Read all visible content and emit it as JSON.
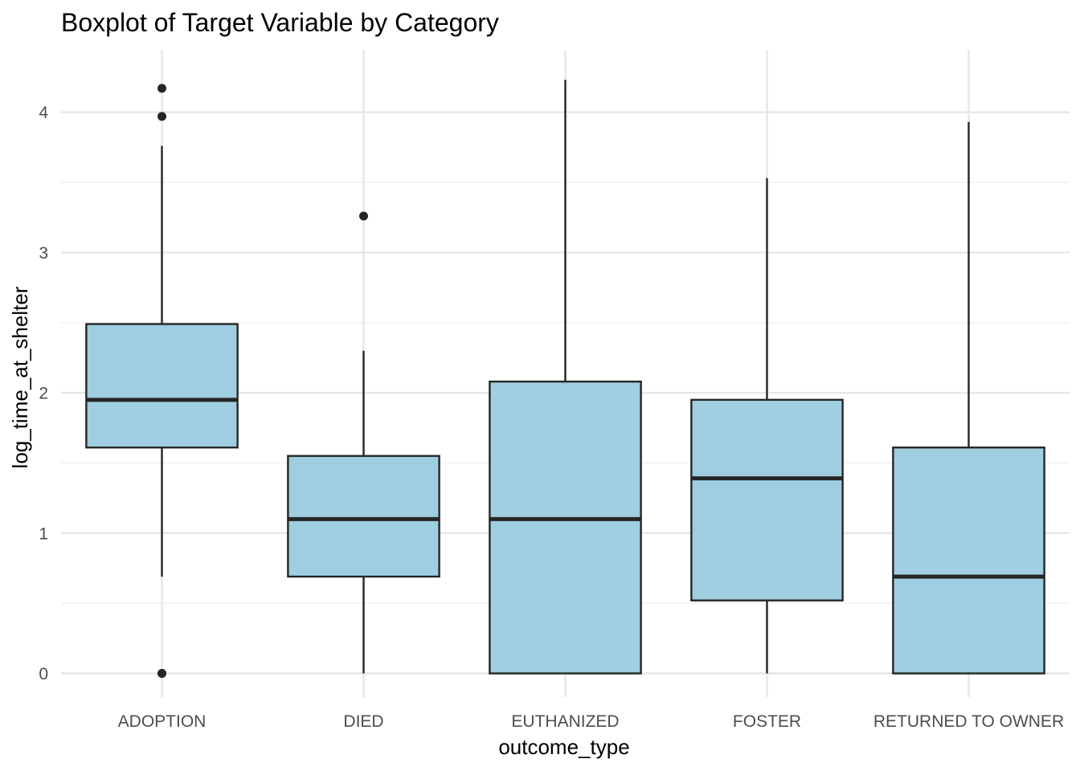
{
  "chart_data": {
    "type": "boxplot",
    "title": "Boxplot of Target Variable by Category",
    "xlabel": "outcome_type",
    "ylabel": "log_time_at_shelter",
    "categories": [
      "ADOPTION",
      "DIED",
      "EUTHANIZED",
      "FOSTER",
      "RETURNED TO OWNER"
    ],
    "ylim": [
      -0.17,
      4.45
    ],
    "y_ticks": [
      0,
      1,
      2,
      3,
      4
    ],
    "y_minor_ticks": [
      0.5,
      1.5,
      2.5,
      3.5
    ],
    "grid": true,
    "fill_color": "#9ecee0",
    "line_color": "#262626",
    "boxes": [
      {
        "category": "ADOPTION",
        "whisker_low": 0.69,
        "q1": 1.61,
        "median": 1.95,
        "q3": 2.49,
        "whisker_high": 3.76,
        "outliers": [
          0,
          0,
          3.97,
          4.17
        ]
      },
      {
        "category": "DIED",
        "whisker_low": 0,
        "q1": 0.69,
        "median": 1.1,
        "q3": 1.55,
        "whisker_high": 2.3,
        "outliers": [
          3.26
        ]
      },
      {
        "category": "EUTHANIZED",
        "whisker_low": 0,
        "q1": 0,
        "median": 1.1,
        "q3": 2.08,
        "whisker_high": 4.23,
        "outliers": []
      },
      {
        "category": "FOSTER",
        "whisker_low": 0,
        "q1": 0.52,
        "median": 1.39,
        "q3": 1.95,
        "whisker_high": 3.53,
        "outliers": []
      },
      {
        "category": "RETURNED TO OWNER",
        "whisker_low": 0,
        "q1": 0,
        "median": 0.69,
        "q3": 1.61,
        "whisker_high": 3.93,
        "outliers": []
      }
    ]
  }
}
